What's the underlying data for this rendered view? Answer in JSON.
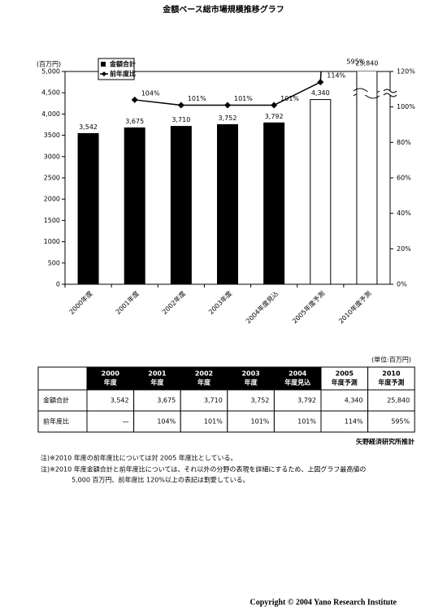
{
  "chart_data": {
    "type": "bar-line",
    "title": "金額ベース総市場規模推移グラフ",
    "y_label": "(百万円)",
    "categories": [
      "2000年度",
      "2001年度",
      "2002年度",
      "2003年度",
      "2004年度見込",
      "2005年度予測",
      "2010年度予測"
    ],
    "series": [
      {
        "name": "金額合計",
        "type": "bar",
        "color": "#000000",
        "colors": [
          "#000000",
          "#000000",
          "#000000",
          "#000000",
          "#000000",
          "#ffffff",
          "#ffffff"
        ],
        "values": [
          3542,
          3675,
          3710,
          3752,
          3792,
          4340,
          25840
        ],
        "value_labels": [
          "3,542",
          "3,675",
          "3,710",
          "3,752",
          "3,792",
          "4,340",
          "25,840"
        ]
      },
      {
        "name": "前年度比",
        "type": "line",
        "axis": "y2",
        "color": "#000000",
        "values": [
          null,
          104,
          101,
          101,
          101,
          114,
          595
        ],
        "value_labels": [
          null,
          "104%",
          "101%",
          "101%",
          "101%",
          "114%",
          "595%"
        ]
      }
    ],
    "ylim": [
      0,
      5000
    ],
    "yticks": [
      0,
      500,
      1000,
      1500,
      2000,
      2500,
      3000,
      3500,
      {
        "value": 4000,
        "label": "4,000"
      },
      {
        "value": 4500,
        "label": "4,500"
      },
      {
        "value": 5000,
        "label": "5,000"
      }
    ],
    "y2lim": [
      0,
      120
    ],
    "y2ticks": [
      {
        "value": 0,
        "label": "0%"
      },
      {
        "value": 20,
        "label": "20%"
      },
      {
        "value": 40,
        "label": "40%"
      },
      {
        "value": 60,
        "label": "60%"
      },
      {
        "value": 80,
        "label": "80%"
      },
      {
        "value": 100,
        "label": "100%"
      },
      {
        "value": 120,
        "label": "120%"
      }
    ],
    "legend": "top-left"
  },
  "table": {
    "unit": "(単位:百万円)",
    "header": [
      [
        "2000",
        "年度"
      ],
      [
        "2001",
        "年度"
      ],
      [
        "2002",
        "年度"
      ],
      [
        "2003",
        "年度"
      ],
      [
        "2004",
        "年度見込"
      ],
      [
        "2005",
        "年度予測"
      ],
      [
        "2010",
        "年度予測"
      ]
    ],
    "rows": [
      {
        "label": "金額合計",
        "cells": [
          "3,542",
          "3,675",
          "3,710",
          "3,752",
          "3,792",
          "4,340",
          "25,840"
        ]
      },
      {
        "label": "前年度比",
        "cells": [
          "—",
          "104%",
          "101%",
          "101%",
          "101%",
          "114%",
          "595%"
        ]
      }
    ],
    "source": "矢野経済研究所推計"
  },
  "notes": [
    "注)※2010 年度の前年度比については対 2005 年度比としている。",
    "注)※2010  年度金額合計と前年度比については、それ以外の分野の表現を詳細にするため、上図グラフ最高値の",
    "5,000 百万円、前年度比 120%以上の表記は割愛している。"
  ],
  "footer": {
    "copyright": "Copyright © 2004 Yano Research Institute"
  }
}
